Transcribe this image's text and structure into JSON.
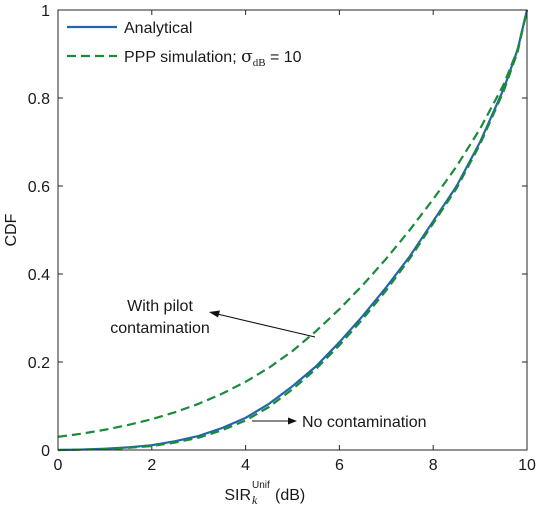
{
  "chart_data": {
    "type": "line",
    "xlabel_main": "SIR",
    "xlabel_sup": "Unif",
    "xlabel_sub": "k",
    "xlabel_unit": " (dB)",
    "ylabel": "CDF",
    "xlim": [
      0,
      10
    ],
    "ylim": [
      0,
      1
    ],
    "xticks": [
      "0",
      "2",
      "4",
      "6",
      "8",
      "10"
    ],
    "yticks": [
      "0",
      "0.2",
      "0.4",
      "0.6",
      "0.8",
      "1"
    ],
    "grid": false,
    "legend_position": "top-left",
    "legend": {
      "analytical": "Analytical",
      "ppp_prefix": "PPP simulation; ",
      "ppp_sigma": "σ",
      "ppp_sigma_sub": "dB",
      "ppp_suffix": " = 10"
    },
    "annotations": {
      "pilot_line1": "With pilot",
      "pilot_line2": "contamination",
      "no_contamination": "No contamination"
    },
    "colors": {
      "analytical": "#2166ac",
      "ppp": "#1b8a3a"
    },
    "series": [
      {
        "name": "Analytical",
        "style": "solid",
        "x": [
          0,
          0.5,
          1,
          1.5,
          2,
          2.5,
          3,
          3.5,
          4,
          4.5,
          5,
          5.5,
          6,
          6.5,
          7,
          7.5,
          8,
          8.5,
          9,
          9.5,
          9.8,
          10
        ],
        "y": [
          0,
          0.001,
          0.003,
          0.006,
          0.011,
          0.02,
          0.032,
          0.05,
          0.073,
          0.105,
          0.145,
          0.19,
          0.245,
          0.305,
          0.37,
          0.44,
          0.52,
          0.6,
          0.7,
          0.82,
          0.91,
          1.0
        ]
      },
      {
        "name": "PPP simulation; σdB = 10",
        "style": "dashed",
        "x": [
          0,
          0.5,
          1,
          1.5,
          2,
          2.5,
          3,
          3.5,
          4,
          4.5,
          5,
          5.5,
          6,
          6.5,
          7,
          7.5,
          8,
          8.5,
          9,
          9.5,
          9.8,
          10
        ],
        "y": [
          0.03,
          0.037,
          0.046,
          0.057,
          0.07,
          0.086,
          0.105,
          0.128,
          0.155,
          0.187,
          0.225,
          0.27,
          0.32,
          0.375,
          0.435,
          0.5,
          0.57,
          0.645,
          0.73,
          0.83,
          0.91,
          1.0
        ]
      },
      {
        "name": "",
        "style": "dashed",
        "x": [
          0,
          0.5,
          1,
          1.5,
          2,
          2.5,
          3,
          3.5,
          4,
          4.5,
          5,
          5.5,
          6,
          6.5,
          7,
          7.5,
          8,
          8.5,
          9,
          9.5,
          9.8,
          10
        ],
        "y": [
          0,
          0.001,
          0.002,
          0.005,
          0.009,
          0.017,
          0.028,
          0.045,
          0.067,
          0.098,
          0.138,
          0.184,
          0.238,
          0.298,
          0.363,
          0.435,
          0.515,
          0.595,
          0.695,
          0.815,
          0.905,
          1.0
        ]
      }
    ]
  }
}
